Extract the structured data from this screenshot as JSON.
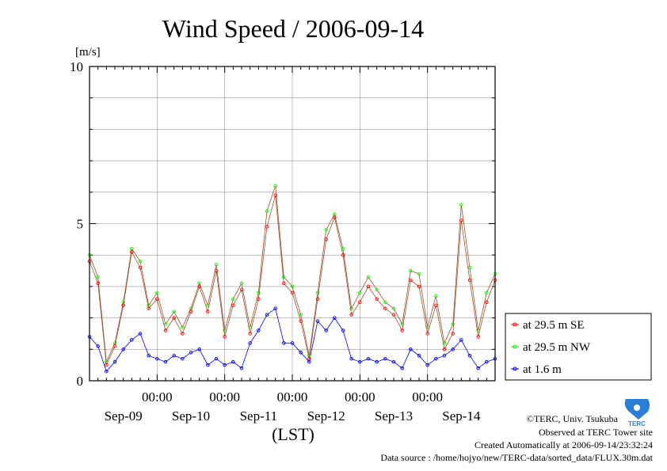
{
  "credits": {
    "copyright": "©TERC, Univ. Tsukuba",
    "site": "Observed at TERC Tower site",
    "created": "Created Automatically at 2006-09-14/23:32:24",
    "source": "Data source : /home/hojyo/new/TERC-data/sorted_data/FLUX.30m.dat",
    "logo_text": "TERC"
  },
  "chart_data": {
    "type": "line",
    "title": "Wind Speed / 2006-09-14",
    "ylabel": "[m/s]",
    "xlabel": "(LST)",
    "ylim": [
      0,
      10
    ],
    "yticks": [
      0,
      5,
      10
    ],
    "xlim": [
      0,
      6
    ],
    "time_ticks": [
      {
        "x": 1,
        "label": "00:00"
      },
      {
        "x": 2,
        "label": "00:00"
      },
      {
        "x": 3,
        "label": "00:00"
      },
      {
        "x": 4,
        "label": "00:00"
      },
      {
        "x": 5,
        "label": "00:00"
      }
    ],
    "date_labels": [
      {
        "x": 0.5,
        "label": "Sep-09"
      },
      {
        "x": 1.5,
        "label": "Sep-10"
      },
      {
        "x": 2.5,
        "label": "Sep-11"
      },
      {
        "x": 3.5,
        "label": "Sep-12"
      },
      {
        "x": 4.5,
        "label": "Sep-13"
      },
      {
        "x": 5.5,
        "label": "Sep-14"
      }
    ],
    "grid": true,
    "legend_position": "right",
    "series": [
      {
        "name": "at 29.5 m SE",
        "color": "#ff0000",
        "x": [
          0,
          0.125,
          0.25,
          0.375,
          0.5,
          0.625,
          0.75,
          0.875,
          1.0,
          1.125,
          1.25,
          1.375,
          1.5,
          1.625,
          1.75,
          1.875,
          2.0,
          2.125,
          2.25,
          2.375,
          2.5,
          2.625,
          2.75,
          2.875,
          3.0,
          3.125,
          3.25,
          3.375,
          3.5,
          3.625,
          3.75,
          3.875,
          4.0,
          4.125,
          4.25,
          4.375,
          4.5,
          4.625,
          4.75,
          4.875,
          5.0,
          5.125,
          5.25,
          5.375,
          5.5,
          5.625,
          5.75,
          5.875,
          6.0
        ],
        "y": [
          3.8,
          3.1,
          0.5,
          1.1,
          2.4,
          4.1,
          3.6,
          2.3,
          2.6,
          1.6,
          2.0,
          1.5,
          2.2,
          3.0,
          2.2,
          3.5,
          1.4,
          2.4,
          2.9,
          1.5,
          2.6,
          4.9,
          5.9,
          3.1,
          2.8,
          1.9,
          0.7,
          2.6,
          4.5,
          5.2,
          4.0,
          2.1,
          2.5,
          3.0,
          2.6,
          2.3,
          2.1,
          1.6,
          3.2,
          3.0,
          1.5,
          2.4,
          1.0,
          1.5,
          5.1,
          3.2,
          1.4,
          2.5,
          3.2
        ]
      },
      {
        "name": "at 29.5 m NW",
        "color": "#00ff00",
        "x": [
          0,
          0.125,
          0.25,
          0.375,
          0.5,
          0.625,
          0.75,
          0.875,
          1.0,
          1.125,
          1.25,
          1.375,
          1.5,
          1.625,
          1.75,
          1.875,
          2.0,
          2.125,
          2.25,
          2.375,
          2.5,
          2.625,
          2.75,
          2.875,
          3.0,
          3.125,
          3.25,
          3.375,
          3.5,
          3.625,
          3.75,
          3.875,
          4.0,
          4.125,
          4.25,
          4.375,
          4.5,
          4.625,
          4.75,
          4.875,
          5.0,
          5.125,
          5.25,
          5.375,
          5.5,
          5.625,
          5.75,
          5.875,
          6.0
        ],
        "y": [
          4.0,
          3.3,
          0.6,
          1.2,
          2.5,
          4.2,
          3.8,
          2.4,
          2.8,
          1.8,
          2.2,
          1.7,
          2.3,
          3.1,
          2.4,
          3.7,
          1.6,
          2.6,
          3.1,
          1.7,
          2.8,
          5.4,
          6.2,
          3.3,
          3.0,
          2.1,
          0.8,
          2.8,
          4.8,
          5.3,
          4.2,
          2.3,
          2.8,
          3.3,
          2.9,
          2.5,
          2.3,
          1.8,
          3.5,
          3.4,
          1.7,
          2.7,
          1.2,
          1.8,
          5.6,
          3.6,
          1.6,
          2.8,
          3.4
        ]
      },
      {
        "name": "at 1.6 m",
        "color": "#0000ff",
        "x": [
          0,
          0.125,
          0.25,
          0.375,
          0.5,
          0.625,
          0.75,
          0.875,
          1.0,
          1.125,
          1.25,
          1.375,
          1.5,
          1.625,
          1.75,
          1.875,
          2.0,
          2.125,
          2.25,
          2.375,
          2.5,
          2.625,
          2.75,
          2.875,
          3.0,
          3.125,
          3.25,
          3.375,
          3.5,
          3.625,
          3.75,
          3.875,
          4.0,
          4.125,
          4.25,
          4.375,
          4.5,
          4.625,
          4.75,
          4.875,
          5.0,
          5.125,
          5.25,
          5.375,
          5.5,
          5.625,
          5.75,
          5.875,
          6.0
        ],
        "y": [
          1.4,
          1.1,
          0.3,
          0.6,
          1.0,
          1.3,
          1.5,
          0.8,
          0.7,
          0.6,
          0.8,
          0.7,
          0.9,
          1.0,
          0.5,
          0.7,
          0.5,
          0.6,
          0.4,
          1.2,
          1.6,
          2.1,
          2.3,
          1.2,
          1.2,
          0.9,
          0.6,
          1.9,
          1.6,
          2.0,
          1.6,
          0.7,
          0.6,
          0.7,
          0.6,
          0.7,
          0.6,
          0.4,
          1.0,
          0.8,
          0.5,
          0.7,
          0.8,
          1.0,
          1.3,
          0.8,
          0.4,
          0.6,
          0.7
        ]
      }
    ]
  }
}
